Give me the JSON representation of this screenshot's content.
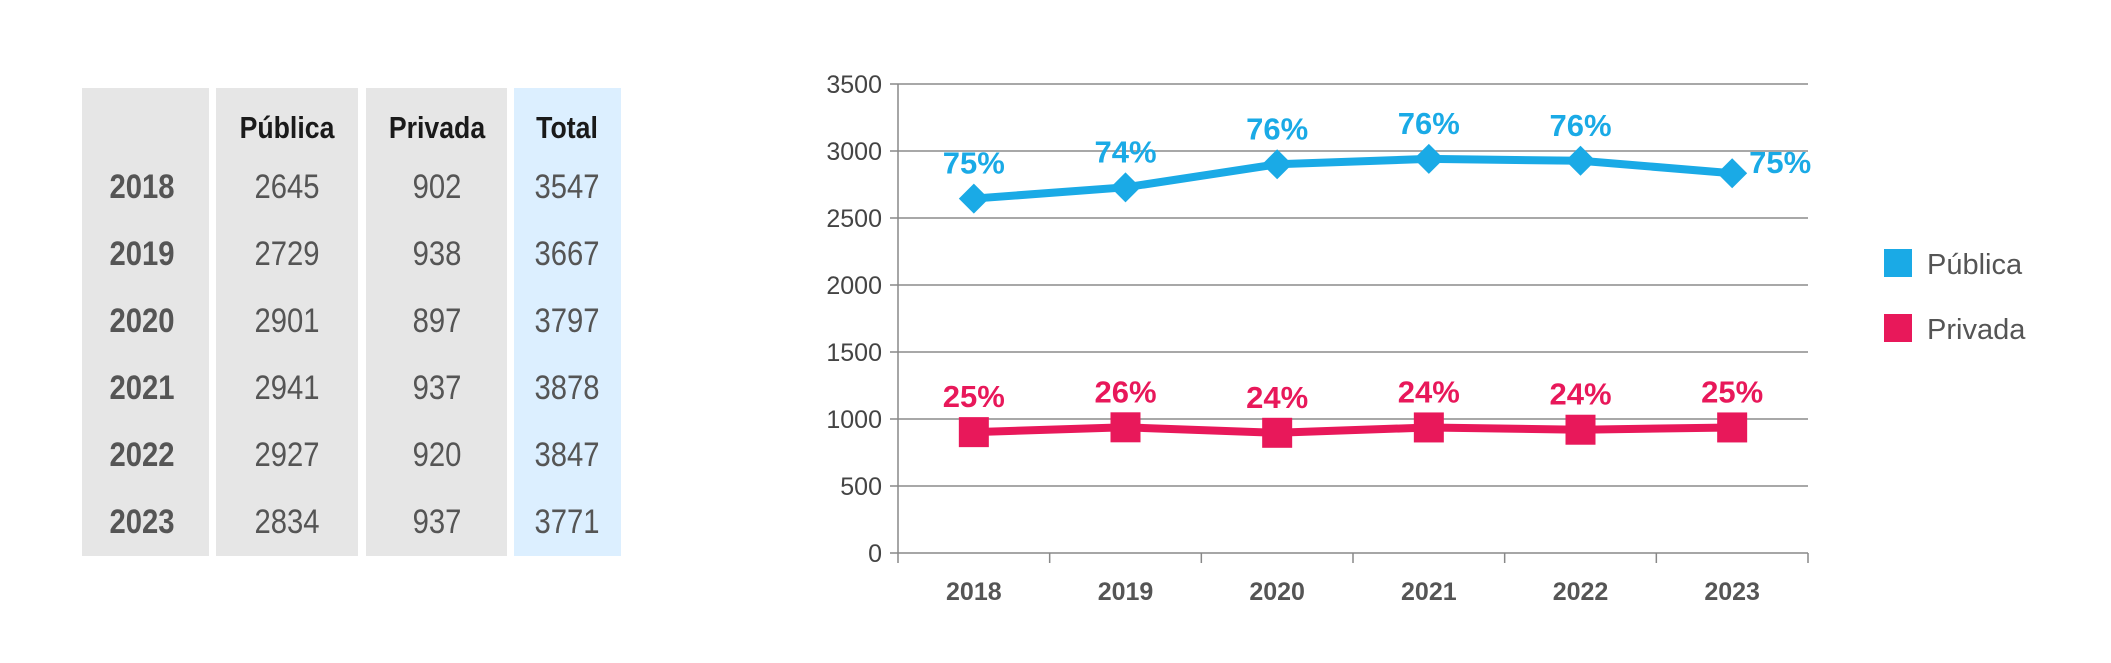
{
  "table": {
    "headers": [
      "",
      "Pública",
      "Privada",
      "Total"
    ],
    "rows": [
      {
        "year": "2018",
        "publica": "2645",
        "privada": "902",
        "total": "3547"
      },
      {
        "year": "2019",
        "publica": "2729",
        "privada": "938",
        "total": "3667"
      },
      {
        "year": "2020",
        "publica": "2901",
        "privada": "897",
        "total": "3797"
      },
      {
        "year": "2021",
        "publica": "2941",
        "privada": "937",
        "total": "3878"
      },
      {
        "year": "2022",
        "publica": "2927",
        "privada": "920",
        "total": "3847"
      },
      {
        "year": "2023",
        "publica": "2834",
        "privada": "937",
        "total": "3771"
      }
    ]
  },
  "chart_data": {
    "type": "line",
    "categories": [
      "2018",
      "2019",
      "2020",
      "2021",
      "2022",
      "2023"
    ],
    "ylim": [
      0,
      3500
    ],
    "yticks": [
      0,
      500,
      1000,
      1500,
      2000,
      2500,
      3000,
      3500
    ],
    "grid": true,
    "legend_position": "right",
    "series": [
      {
        "name": "Pública",
        "color": "#1aaae6",
        "marker": "diamond",
        "values": [
          2645,
          2729,
          2901,
          2941,
          2927,
          2834
        ],
        "labels": [
          "75%",
          "74%",
          "76%",
          "76%",
          "76%",
          "75%"
        ]
      },
      {
        "name": "Privada",
        "color": "#e8185a",
        "marker": "square",
        "values": [
          902,
          938,
          897,
          937,
          920,
          937
        ],
        "labels": [
          "25%",
          "26%",
          "24%",
          "24%",
          "24%",
          "25%"
        ]
      }
    ]
  }
}
